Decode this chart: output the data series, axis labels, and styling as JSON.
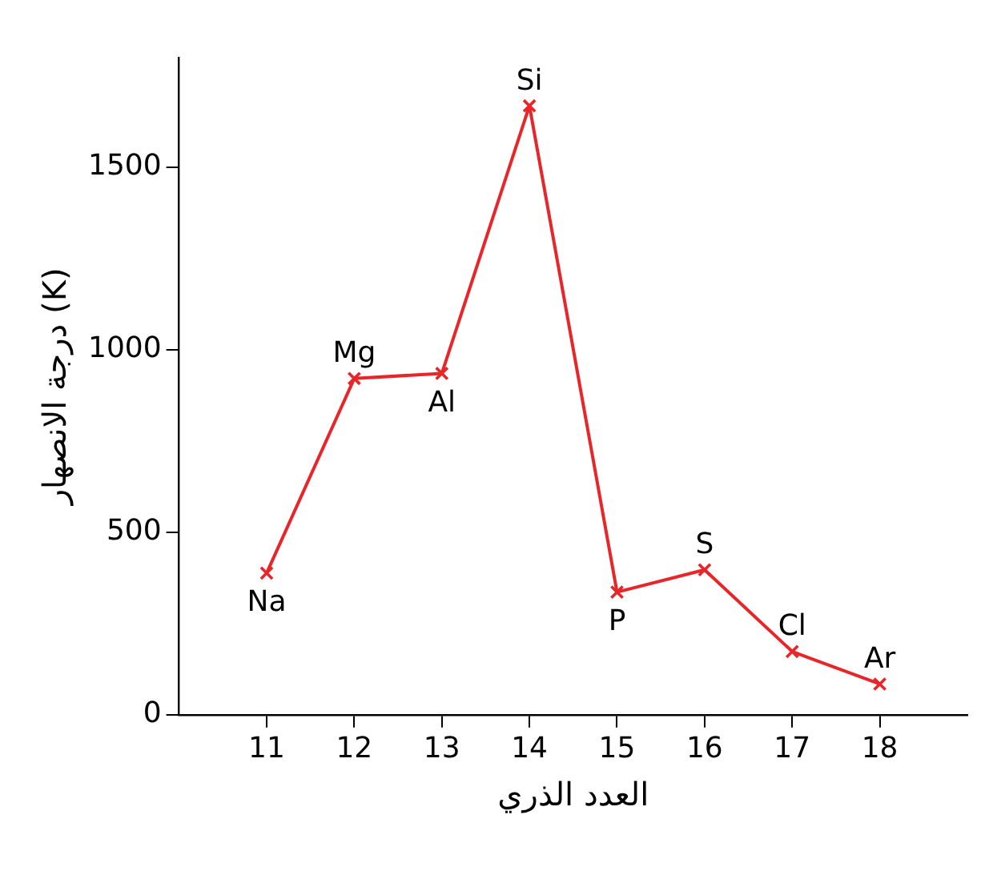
{
  "chart_data": {
    "type": "line",
    "xlabel": "العدد الذري",
    "ylabel": "درجة الانصهار (K)",
    "x": [
      11,
      12,
      13,
      14,
      15,
      16,
      17,
      18
    ],
    "series": [
      {
        "color": "#e8262a",
        "values": [
          388,
          921,
          935,
          1668,
          336,
          397,
          173,
          84
        ]
      }
    ],
    "xlim": [
      10,
      19
    ],
    "xticks": [
      11,
      12,
      13,
      14,
      15,
      16,
      17,
      18
    ],
    "ylim": [
      0,
      1800
    ],
    "yticks": [
      0,
      500,
      1000,
      1500
    ],
    "grid": false,
    "legend": false,
    "marker": "cross",
    "line_style": "solid",
    "annotations": [
      {
        "text": "Na",
        "x": 11,
        "y": 388
      },
      {
        "text": "Mg",
        "x": 12,
        "y": 921
      },
      {
        "text": "Al",
        "x": 13,
        "y": 935
      },
      {
        "text": "Si",
        "x": 14,
        "y": 1668
      },
      {
        "text": "P",
        "x": 15,
        "y": 336
      },
      {
        "text": "S",
        "x": 16,
        "y": 397
      },
      {
        "text": "Cl",
        "x": 17,
        "y": 173
      },
      {
        "text": "Ar",
        "x": 18,
        "y": 84
      }
    ]
  }
}
